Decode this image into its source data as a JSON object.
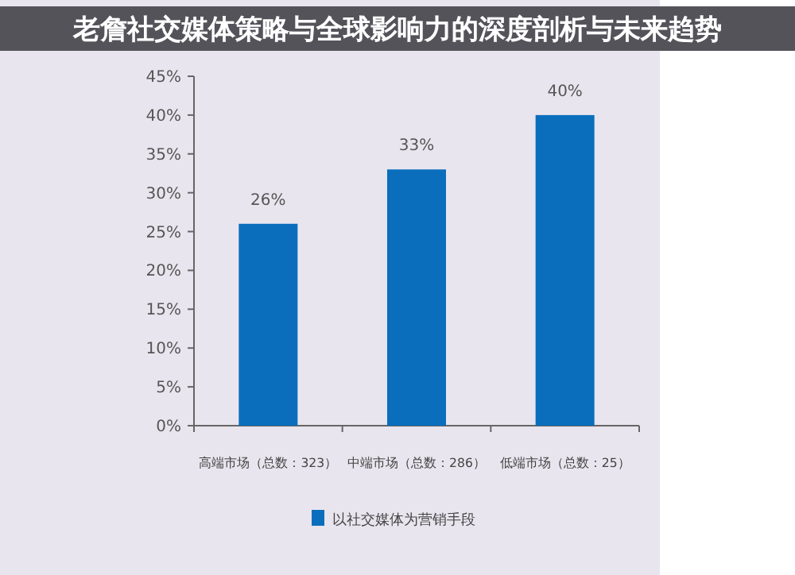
{
  "chart_data": {
    "type": "bar",
    "title": "老詹社交媒体策略与全球影响力的深度剖析与未来趋势",
    "categories": [
      "高端市场（总数：323）",
      "中端市场（总数：286）",
      "低端市场（总数：25）"
    ],
    "series": [
      {
        "name": "以社交媒体为营销手段",
        "color": "#0a6ebd",
        "values": [
          26,
          33,
          40
        ],
        "value_labels": [
          "26%",
          "33%",
          "40%"
        ]
      }
    ],
    "ylim": [
      0,
      45
    ],
    "yticks": [
      {
        "value": 0,
        "label": "0%"
      },
      {
        "value": 5,
        "label": "5%"
      },
      {
        "value": 10,
        "label": "10%"
      },
      {
        "value": 15,
        "label": "15%"
      },
      {
        "value": 20,
        "label": "20%"
      },
      {
        "value": 25,
        "label": "25%"
      },
      {
        "value": 30,
        "label": "30%"
      },
      {
        "value": 35,
        "label": "35%"
      },
      {
        "value": 40,
        "label": "40%"
      },
      {
        "value": 45,
        "label": "45%"
      }
    ],
    "grid": false,
    "legend": "bottom"
  }
}
